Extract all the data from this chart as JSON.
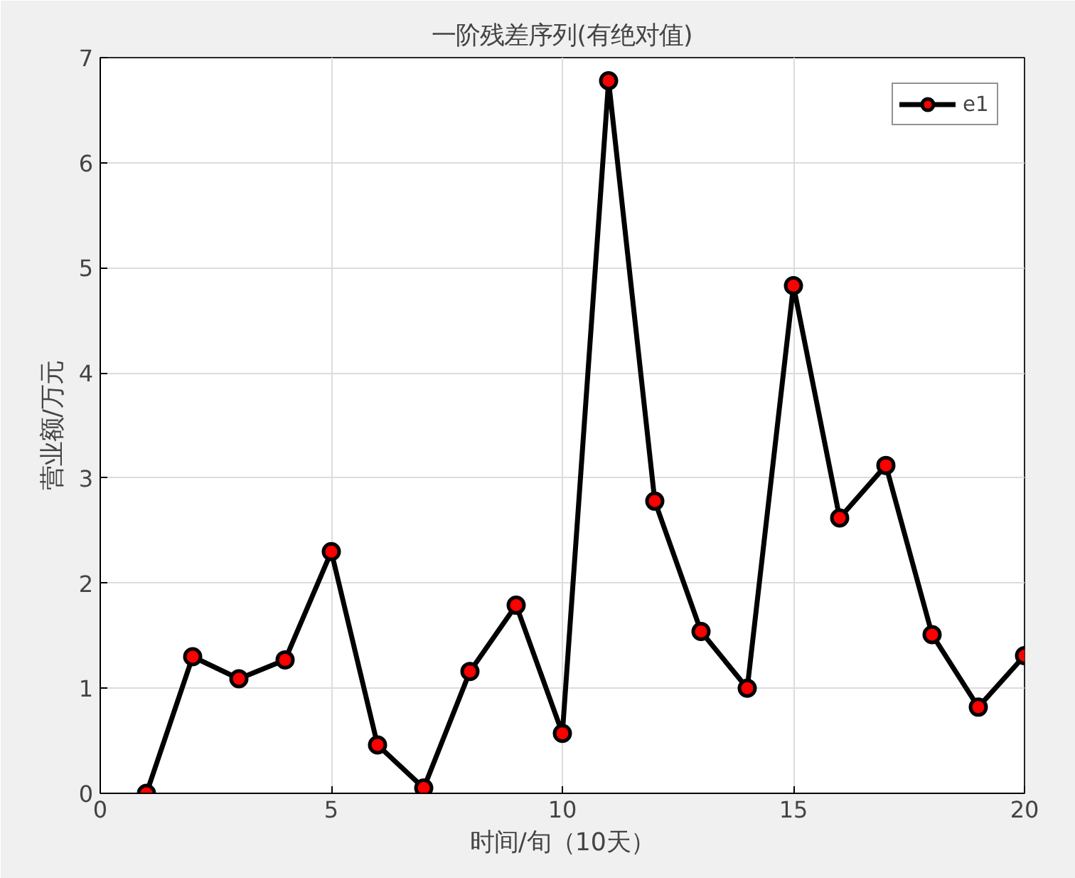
{
  "chart_data": {
    "type": "line",
    "title": "一阶残差序列(有绝对值)",
    "xlabel": "时间/旬（10天）",
    "ylabel": "营业额/万元",
    "x": [
      1,
      2,
      3,
      4,
      5,
      6,
      7,
      8,
      9,
      10,
      11,
      12,
      13,
      14,
      15,
      16,
      17,
      18,
      19,
      20
    ],
    "series": [
      {
        "name": "e1",
        "color": "#000000",
        "values": [
          0,
          1.3,
          1.09,
          1.27,
          2.3,
          0.46,
          0.05,
          1.16,
          1.79,
          0.57,
          6.78,
          2.78,
          1.54,
          1.0,
          4.83,
          2.62,
          3.12,
          1.51,
          0.82,
          1.31
        ]
      }
    ],
    "xlim": [
      0,
      20
    ],
    "xticks": [
      0,
      5,
      10,
      15,
      20
    ],
    "ylim": [
      0,
      7
    ],
    "yticks": [
      0,
      1,
      2,
      3,
      4,
      5,
      6,
      7
    ],
    "grid": true,
    "legend": "top right",
    "marker": "circle",
    "line_style": "solid"
  }
}
